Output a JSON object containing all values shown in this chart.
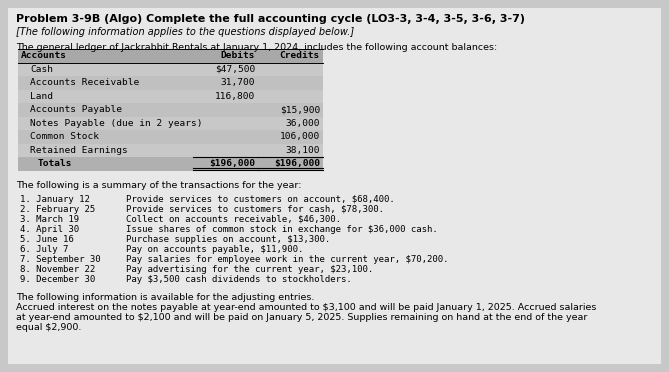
{
  "title": "Problem 3-9B (Algo) Complete the full accounting cycle (LO3-3, 3-4, 3-5, 3-6, 3-7)",
  "subtitle": "[The following information applies to the questions displayed below.]",
  "intro": "The general ledger of Jackrabbit Rentals at January 1, 2024, includes the following account balances:",
  "table_header": [
    "Accounts",
    "Debits",
    "Credits"
  ],
  "table_rows": [
    [
      "Cash",
      "$47,500",
      ""
    ],
    [
      "Accounts Receivable",
      "31,700",
      ""
    ],
    [
      "Land",
      "116,800",
      ""
    ],
    [
      "Accounts Payable",
      "",
      "$15,900"
    ],
    [
      "Notes Payable (due in 2 years)",
      "",
      "36,000"
    ],
    [
      "Common Stock",
      "",
      "106,000"
    ],
    [
      "Retained Earnings",
      "",
      "38,100"
    ],
    [
      "Totals",
      "$196,000",
      "$196,000"
    ]
  ],
  "transactions_header": "The following is a summary of the transactions for the year:",
  "transactions": [
    [
      "1. January 12  ",
      "Provide services to customers on account, $68,400."
    ],
    [
      "2. February 25 ",
      "Provide services to customers for cash, $78,300."
    ],
    [
      "3. March 19    ",
      "Collect on accounts receivable, $46,300."
    ],
    [
      "4. April 30    ",
      "Issue shares of common stock in exchange for $36,000 cash."
    ],
    [
      "5. June 16     ",
      "Purchase supplies on account, $13,300."
    ],
    [
      "6. July 7      ",
      "Pay on accounts payable, $11,900."
    ],
    [
      "7. September 30",
      "Pay salaries for employee work in the current year, $70,200."
    ],
    [
      "8. November 22 ",
      "Pay advertising for the current year, $23,100."
    ],
    [
      "9. December 30 ",
      "Pay $3,500 cash dividends to stockholders."
    ]
  ],
  "adjusting_header": "The following information is available for the adjusting entries.",
  "adjusting_lines": [
    "Accrued interest on the notes payable at year-end amounted to $3,100 and will be paid January 1, 2025. Accrued salaries",
    "at year-end amounted to $2,100 and will be paid on January 5, 2025. Supplies remaining on hand at the end of the year",
    "equal $2,900."
  ],
  "outer_bg": "#c8c8c8",
  "inner_bg": "#e8e8e8",
  "table_header_bg": "#a8a8a8",
  "table_row_bg_even": "#c8c8c8",
  "table_row_bg_odd": "#c0c0c0",
  "table_total_bg": "#b0b0b0",
  "text_color": "#000000",
  "title_fontsize": 8.0,
  "subtitle_fontsize": 7.0,
  "body_fontsize": 6.8,
  "table_fontsize": 6.8
}
